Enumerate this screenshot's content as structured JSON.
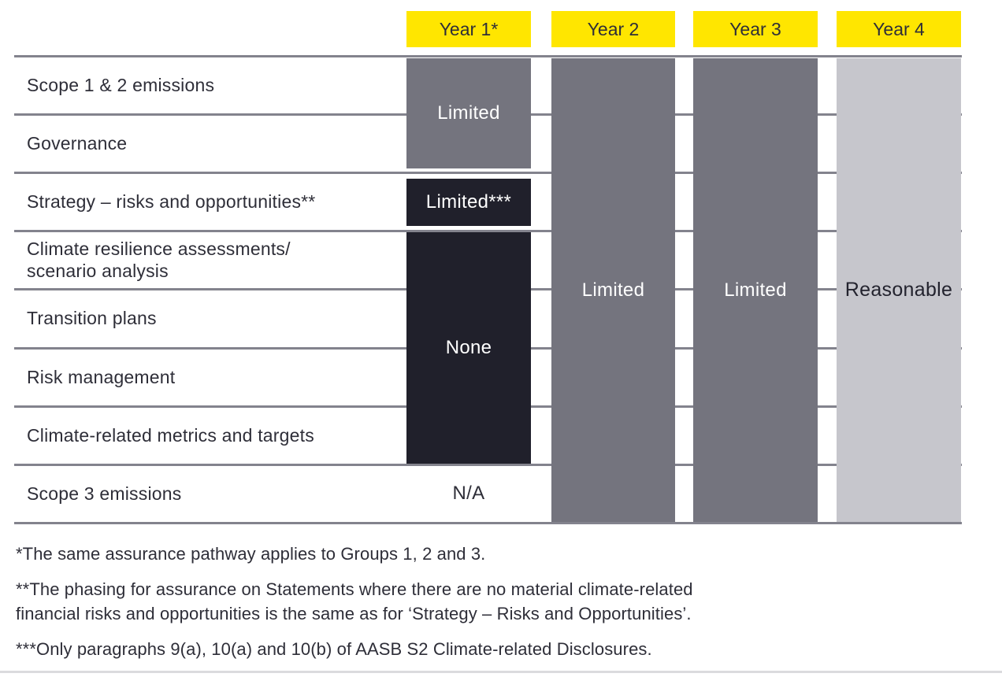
{
  "figure": {
    "columns": [
      "Year 1*",
      "Year 2",
      "Year 3",
      "Year 4"
    ],
    "row_labels": [
      "Scope 1 & 2 emissions",
      "Governance",
      "Strategy – risks and opportunities**",
      "Climate resilience assessments/\nscenario analysis",
      "Transition plans",
      "Risk management",
      "Climate-related metrics and targets",
      "Scope 3 emissions"
    ],
    "year1_cells": {
      "limited": "Limited",
      "limited_strategy": "Limited***",
      "none": "None",
      "na": "N/A"
    },
    "year2_label": "Limited",
    "year3_label": "Limited",
    "year4_label": "Reasonable",
    "footnotes": [
      "*The same assurance pathway applies to Groups 1, 2 and 3.",
      "**The phasing for assurance on Statements where there are no material climate-related\nfinancial risks and opportunities is the same as for ‘Strategy – Risks and Opportunities’.",
      "***Only paragraphs 9(a), 10(a) and 10(b) of AASB S2 Climate-related Disclosures."
    ]
  },
  "palette": {
    "header_yellow": "#ffe600",
    "mid_gray_bar": "#74747e",
    "dark_bar": "#20202b",
    "light_gray_bar": "#c6c6cc",
    "text_dark": "#2e2e38",
    "divider_gray": "#83838d"
  },
  "chart_data": {
    "type": "table",
    "title": "Assurance phasing pathway by year",
    "columns": [
      "Year 1*",
      "Year 2",
      "Year 3",
      "Year 4"
    ],
    "rows": [
      "Scope 1 & 2 emissions",
      "Governance",
      "Strategy – risks and opportunities**",
      "Climate resilience assessments/scenario analysis",
      "Transition plans",
      "Risk management",
      "Climate-related metrics and targets",
      "Scope 3 emissions"
    ],
    "cells_by_row": [
      [
        "Limited",
        "Limited",
        "Limited",
        "Reasonable"
      ],
      [
        "Limited",
        "Limited",
        "Limited",
        "Reasonable"
      ],
      [
        "Limited***",
        "Limited",
        "Limited",
        "Reasonable"
      ],
      [
        "None",
        "Limited",
        "Limited",
        "Reasonable"
      ],
      [
        "None",
        "Limited",
        "Limited",
        "Reasonable"
      ],
      [
        "None",
        "Limited",
        "Limited",
        "Reasonable"
      ],
      [
        "None",
        "Limited",
        "Limited",
        "Reasonable"
      ],
      [
        "N/A",
        "Limited",
        "Limited",
        "Reasonable"
      ]
    ],
    "merged_blocks": [
      {
        "column": "Year 1*",
        "label": "Limited",
        "row_start": 1,
        "row_end": 2,
        "fill": "#74747e"
      },
      {
        "column": "Year 1*",
        "label": "Limited***",
        "row_start": 3,
        "row_end": 3,
        "fill": "#20202b"
      },
      {
        "column": "Year 1*",
        "label": "None",
        "row_start": 4,
        "row_end": 7,
        "fill": "#20202b"
      },
      {
        "column": "Year 1*",
        "label": "N/A",
        "row_start": 8,
        "row_end": 8,
        "fill": "none"
      },
      {
        "column": "Year 2",
        "label": "Limited",
        "row_start": 1,
        "row_end": 8,
        "fill": "#74747e"
      },
      {
        "column": "Year 3",
        "label": "Limited",
        "row_start": 1,
        "row_end": 8,
        "fill": "#74747e"
      },
      {
        "column": "Year 4",
        "label": "Reasonable",
        "row_start": 1,
        "row_end": 8,
        "fill": "#c6c6cc"
      }
    ],
    "footnotes": [
      "*The same assurance pathway applies to Groups 1, 2 and 3.",
      "**The phasing for assurance on Statements where there are no material climate-related financial risks and opportunities is the same as for ‘Strategy – Risks and Opportunities’.",
      "***Only paragraphs 9(a), 10(a) and 10(b) of AASB S2 Climate-related Disclosures."
    ],
    "layout_hints": {
      "grid": "horizontal row dividers only",
      "header_fill": "#ffe600",
      "legend": "none"
    }
  }
}
